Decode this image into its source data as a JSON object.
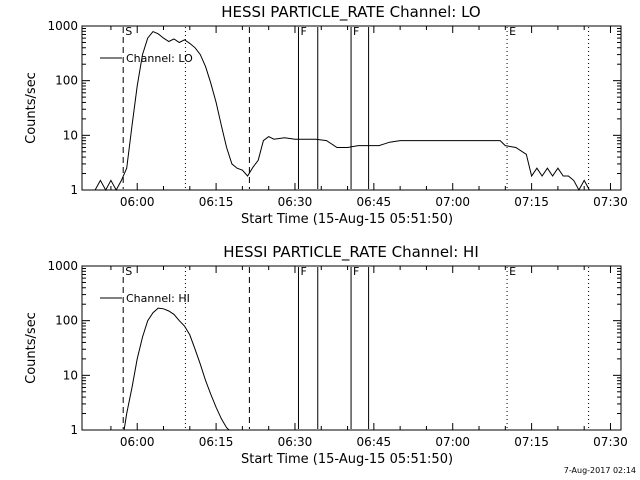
{
  "footer": {
    "timestamp": "7-Aug-2017 02:14"
  },
  "chart_data": [
    {
      "type": "line",
      "title": "HESSI PARTICLE_RATE Channel: LO",
      "xlabel": "Start Time (15-Aug-15 05:51:50)",
      "ylabel": "Counts/sec",
      "y_scale": "log",
      "ylim": [
        1,
        1000
      ],
      "xlim_minutes_after_0600": [
        -10.5,
        92
      ],
      "x_ticks": [
        "06:00",
        "06:15",
        "06:30",
        "06:45",
        "07:00",
        "07:15",
        "07:30"
      ],
      "y_ticks": [
        "1",
        "10",
        "100",
        "1000"
      ],
      "legend": {
        "placement": "top-left",
        "entries": [
          "Channel: LO"
        ]
      },
      "markers": [
        {
          "label": "S",
          "time": "05:57:20",
          "style": "dashed"
        },
        {
          "label": "",
          "time": "06:09:10",
          "style": "dotted"
        },
        {
          "label": "",
          "time": "06:21:20",
          "style": "dashed"
        },
        {
          "label": "F",
          "time": "06:30:40",
          "style": "solid"
        },
        {
          "label": "",
          "time": "06:34:20",
          "style": "solid"
        },
        {
          "label": "F",
          "time": "06:40:40",
          "style": "solid"
        },
        {
          "label": "",
          "time": "06:44:00",
          "style": "solid"
        },
        {
          "label": "E",
          "time": "07:10:20",
          "style": "dotted"
        },
        {
          "label": "",
          "time": "07:25:50",
          "style": "dotted"
        }
      ],
      "series": [
        {
          "name": "Channel: LO",
          "points": [
            [
              "05:52",
              1
            ],
            [
              "05:53",
              1.5
            ],
            [
              "05:54",
              1
            ],
            [
              "05:55",
              1.5
            ],
            [
              "05:56",
              1
            ],
            [
              "05:57",
              1.5
            ],
            [
              "05:58",
              2.5
            ],
            [
              "05:59",
              15
            ],
            [
              "06:00",
              80
            ],
            [
              "06:01",
              300
            ],
            [
              "06:02",
              600
            ],
            [
              "06:03",
              790
            ],
            [
              "06:04",
              720
            ],
            [
              "06:05",
              600
            ],
            [
              "06:06",
              520
            ],
            [
              "06:07",
              580
            ],
            [
              "06:08",
              500
            ],
            [
              "06:09",
              560
            ],
            [
              "06:10",
              480
            ],
            [
              "06:11",
              400
            ],
            [
              "06:12",
              300
            ],
            [
              "06:13",
              180
            ],
            [
              "06:14",
              90
            ],
            [
              "06:15",
              40
            ],
            [
              "06:16",
              15
            ],
            [
              "06:17",
              6
            ],
            [
              "06:18",
              3
            ],
            [
              "06:19",
              2.5
            ],
            [
              "06:20",
              2.3
            ],
            [
              "06:21",
              1.8
            ],
            [
              "06:22",
              2.6
            ],
            [
              "06:23",
              3.5
            ],
            [
              "06:24",
              8
            ],
            [
              "06:25",
              9.5
            ],
            [
              "06:26",
              8.5
            ],
            [
              "06:28",
              9
            ],
            [
              "06:30",
              8.5
            ],
            [
              "06:32",
              8.5
            ],
            [
              "06:34",
              8.5
            ],
            [
              "06:36",
              8
            ],
            [
              "06:38",
              6
            ],
            [
              "06:40",
              6
            ],
            [
              "06:42",
              6.5
            ],
            [
              "06:44",
              6.5
            ],
            [
              "06:46",
              6.5
            ],
            [
              "06:48",
              7.5
            ],
            [
              "06:50",
              8
            ],
            [
              "06:52",
              8
            ],
            [
              "06:55",
              8
            ],
            [
              "06:58",
              8
            ],
            [
              "07:02",
              8
            ],
            [
              "07:05",
              8
            ],
            [
              "07:09",
              8
            ],
            [
              "07:10",
              6.5
            ],
            [
              "07:12",
              6
            ],
            [
              "07:14",
              4.5
            ],
            [
              "07:15",
              1.8
            ],
            [
              "07:16",
              2.5
            ],
            [
              "07:17",
              1.8
            ],
            [
              "07:18",
              2.5
            ],
            [
              "07:19",
              1.8
            ],
            [
              "07:20",
              2.5
            ],
            [
              "07:21",
              1.8
            ],
            [
              "07:22",
              1.8
            ],
            [
              "07:23",
              1.5
            ],
            [
              "07:24",
              1
            ],
            [
              "07:25",
              1.5
            ],
            [
              "07:26",
              1
            ]
          ]
        }
      ]
    },
    {
      "type": "line",
      "title": "HESSI PARTICLE_RATE Channel: HI",
      "xlabel": "Start Time (15-Aug-15 05:51:50)",
      "ylabel": "Counts/sec",
      "y_scale": "log",
      "ylim": [
        1,
        1000
      ],
      "xlim_minutes_after_0600": [
        -10.5,
        92
      ],
      "x_ticks": [
        "06:00",
        "06:15",
        "06:30",
        "06:45",
        "07:00",
        "07:15",
        "07:30"
      ],
      "y_ticks": [
        "1",
        "10",
        "100",
        "1000"
      ],
      "legend": {
        "placement": "top-left",
        "entries": [
          "Channel: HI"
        ]
      },
      "markers": [
        {
          "label": "S",
          "time": "05:57:20",
          "style": "dashed"
        },
        {
          "label": "",
          "time": "06:09:10",
          "style": "dotted"
        },
        {
          "label": "",
          "time": "06:21:20",
          "style": "dashed"
        },
        {
          "label": "F",
          "time": "06:30:40",
          "style": "solid"
        },
        {
          "label": "",
          "time": "06:34:20",
          "style": "solid"
        },
        {
          "label": "F",
          "time": "06:40:40",
          "style": "solid"
        },
        {
          "label": "",
          "time": "06:44:00",
          "style": "solid"
        },
        {
          "label": "E",
          "time": "07:10:20",
          "style": "dotted"
        },
        {
          "label": "",
          "time": "07:25:50",
          "style": "dotted"
        }
      ],
      "series": [
        {
          "name": "Channel: HI",
          "points": [
            [
              "05:57:30",
              1
            ],
            [
              "05:58",
              2
            ],
            [
              "05:59",
              6
            ],
            [
              "06:00",
              20
            ],
            [
              "06:01",
              50
            ],
            [
              "06:02",
              100
            ],
            [
              "06:03",
              140
            ],
            [
              "06:04",
              170
            ],
            [
              "06:05",
              165
            ],
            [
              "06:06",
              150
            ],
            [
              "06:07",
              130
            ],
            [
              "06:08",
              100
            ],
            [
              "06:09",
              80
            ],
            [
              "06:10",
              55
            ],
            [
              "06:11",
              30
            ],
            [
              "06:12",
              16
            ],
            [
              "06:13",
              8
            ],
            [
              "06:14",
              4.5
            ],
            [
              "06:15",
              2.6
            ],
            [
              "06:16",
              1.6
            ],
            [
              "06:17",
              1.1
            ],
            [
              "06:17:30",
              1
            ]
          ]
        }
      ]
    }
  ]
}
